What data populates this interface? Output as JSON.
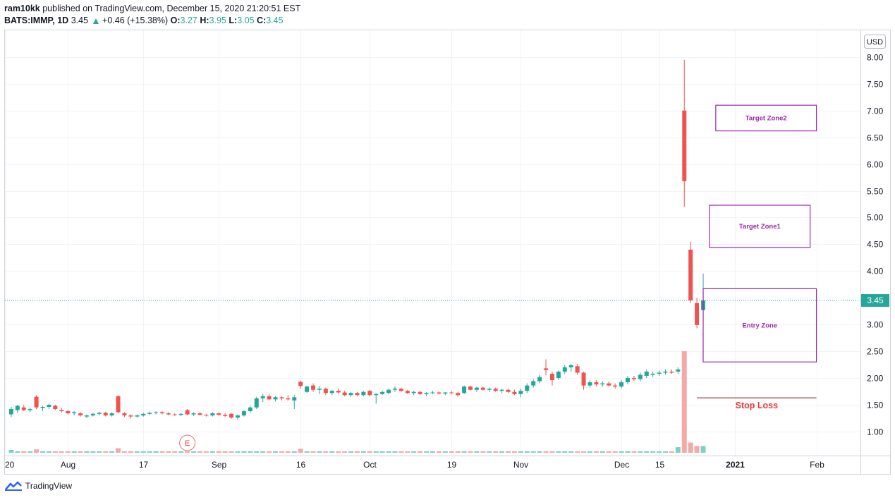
{
  "header": {
    "author": "ram10kk",
    "published_text": "published on TradingView.com, December 15, 2020 21:20:51 EST",
    "symbol": "BATS:IMMP, 1D",
    "price": "3.45",
    "change": "+0.46 (+15.38%)",
    "o_label": "O:",
    "o_value": "3.27",
    "h_label": "H:",
    "h_value": "3.95",
    "l_label": "L:",
    "l_value": "3.05",
    "c_label": "C:",
    "c_value": "3.45"
  },
  "currency_label": "USD",
  "last_price_label": "3.45",
  "brand": "TradingView",
  "colors": {
    "up": "#26a69a",
    "down": "#ef5350",
    "vol_up": "#7fcfc6",
    "vol_down": "#f4a9a8",
    "zone": "#9c27b0",
    "stop": "#e53935"
  },
  "chart_data": {
    "type": "candlestick",
    "y_ticks": [
      "8.00",
      "7.50",
      "7.00",
      "6.50",
      "6.00",
      "5.50",
      "5.00",
      "4.50",
      "4.00",
      "3.50",
      "3.00",
      "2.50",
      "2.00",
      "1.50",
      "1.00"
    ],
    "ylim": [
      0.55,
      8.5
    ],
    "x_ticks": [
      "20",
      "Aug",
      "17",
      "Sep",
      "16",
      "Oct",
      "19",
      "Nov",
      "Dec",
      "15",
      "2021",
      "Feb"
    ],
    "x_tick_days": [
      -1,
      9,
      21,
      33,
      46,
      57,
      70,
      81,
      97,
      103,
      115,
      128
    ],
    "xlim": [
      -1,
      135
    ],
    "grid": true,
    "last_price": 3.45,
    "candles": [
      {
        "d": 0,
        "o": 1.32,
        "h": 1.46,
        "l": 1.27,
        "c": 1.42
      },
      {
        "d": 1,
        "o": 1.4,
        "h": 1.5,
        "l": 1.35,
        "c": 1.48
      },
      {
        "d": 2,
        "o": 1.45,
        "h": 1.5,
        "l": 1.38,
        "c": 1.4
      },
      {
        "d": 3,
        "o": 1.4,
        "h": 1.45,
        "l": 1.36,
        "c": 1.42
      },
      {
        "d": 4,
        "o": 1.65,
        "h": 1.68,
        "l": 1.42,
        "c": 1.45
      },
      {
        "d": 5,
        "o": 1.44,
        "h": 1.48,
        "l": 1.38,
        "c": 1.46
      },
      {
        "d": 6,
        "o": 1.46,
        "h": 1.52,
        "l": 1.42,
        "c": 1.5
      },
      {
        "d": 7,
        "o": 1.48,
        "h": 1.5,
        "l": 1.4,
        "c": 1.42
      },
      {
        "d": 8,
        "o": 1.4,
        "h": 1.44,
        "l": 1.35,
        "c": 1.38
      },
      {
        "d": 9,
        "o": 1.38,
        "h": 1.4,
        "l": 1.32,
        "c": 1.34
      },
      {
        "d": 10,
        "o": 1.34,
        "h": 1.38,
        "l": 1.3,
        "c": 1.36
      },
      {
        "d": 11,
        "o": 1.34,
        "h": 1.36,
        "l": 1.28,
        "c": 1.3
      },
      {
        "d": 12,
        "o": 1.28,
        "h": 1.32,
        "l": 1.25,
        "c": 1.3
      },
      {
        "d": 13,
        "o": 1.3,
        "h": 1.35,
        "l": 1.28,
        "c": 1.33
      },
      {
        "d": 14,
        "o": 1.33,
        "h": 1.37,
        "l": 1.3,
        "c": 1.35
      },
      {
        "d": 15,
        "o": 1.35,
        "h": 1.37,
        "l": 1.28,
        "c": 1.3
      },
      {
        "d": 16,
        "o": 1.3,
        "h": 1.36,
        "l": 1.28,
        "c": 1.34
      },
      {
        "d": 17,
        "o": 1.66,
        "h": 1.68,
        "l": 1.34,
        "c": 1.36
      },
      {
        "d": 18,
        "o": 1.34,
        "h": 1.36,
        "l": 1.27,
        "c": 1.3
      },
      {
        "d": 19,
        "o": 1.3,
        "h": 1.32,
        "l": 1.24,
        "c": 1.28
      },
      {
        "d": 20,
        "o": 1.28,
        "h": 1.32,
        "l": 1.26,
        "c": 1.3
      },
      {
        "d": 21,
        "o": 1.3,
        "h": 1.35,
        "l": 1.28,
        "c": 1.33
      },
      {
        "d": 22,
        "o": 1.33,
        "h": 1.37,
        "l": 1.31,
        "c": 1.35
      },
      {
        "d": 23,
        "o": 1.35,
        "h": 1.38,
        "l": 1.32,
        "c": 1.36
      },
      {
        "d": 24,
        "o": 1.36,
        "h": 1.38,
        "l": 1.32,
        "c": 1.34
      },
      {
        "d": 25,
        "o": 1.34,
        "h": 1.36,
        "l": 1.3,
        "c": 1.32
      },
      {
        "d": 26,
        "o": 1.32,
        "h": 1.34,
        "l": 1.29,
        "c": 1.31
      },
      {
        "d": 27,
        "o": 1.31,
        "h": 1.35,
        "l": 1.29,
        "c": 1.33
      },
      {
        "d": 28,
        "o": 1.4,
        "h": 1.42,
        "l": 1.3,
        "c": 1.32
      },
      {
        "d": 29,
        "o": 1.32,
        "h": 1.36,
        "l": 1.29,
        "c": 1.34
      },
      {
        "d": 30,
        "o": 1.34,
        "h": 1.36,
        "l": 1.3,
        "c": 1.31
      },
      {
        "d": 31,
        "o": 1.31,
        "h": 1.33,
        "l": 1.28,
        "c": 1.3
      },
      {
        "d": 32,
        "o": 1.3,
        "h": 1.36,
        "l": 1.28,
        "c": 1.34
      },
      {
        "d": 33,
        "o": 1.34,
        "h": 1.36,
        "l": 1.3,
        "c": 1.31
      },
      {
        "d": 34,
        "o": 1.31,
        "h": 1.34,
        "l": 1.27,
        "c": 1.29
      },
      {
        "d": 35,
        "o": 1.33,
        "h": 1.35,
        "l": 1.24,
        "c": 1.26
      },
      {
        "d": 36,
        "o": 1.26,
        "h": 1.32,
        "l": 1.22,
        "c": 1.3
      },
      {
        "d": 37,
        "o": 1.3,
        "h": 1.4,
        "l": 1.28,
        "c": 1.38
      },
      {
        "d": 38,
        "o": 1.38,
        "h": 1.48,
        "l": 1.35,
        "c": 1.45
      },
      {
        "d": 39,
        "o": 1.45,
        "h": 1.65,
        "l": 1.42,
        "c": 1.62
      },
      {
        "d": 40,
        "o": 1.62,
        "h": 1.7,
        "l": 1.55,
        "c": 1.66
      },
      {
        "d": 41,
        "o": 1.66,
        "h": 1.7,
        "l": 1.58,
        "c": 1.6
      },
      {
        "d": 42,
        "o": 1.6,
        "h": 1.66,
        "l": 1.56,
        "c": 1.64
      },
      {
        "d": 43,
        "o": 1.64,
        "h": 1.66,
        "l": 1.58,
        "c": 1.62
      },
      {
        "d": 44,
        "o": 1.62,
        "h": 1.68,
        "l": 1.58,
        "c": 1.6
      },
      {
        "d": 45,
        "o": 1.58,
        "h": 1.68,
        "l": 1.42,
        "c": 1.64
      },
      {
        "d": 46,
        "o": 1.93,
        "h": 1.95,
        "l": 1.8,
        "c": 1.85
      },
      {
        "d": 47,
        "o": 1.74,
        "h": 1.86,
        "l": 1.72,
        "c": 1.84
      },
      {
        "d": 48,
        "o": 1.86,
        "h": 1.9,
        "l": 1.74,
        "c": 1.78
      },
      {
        "d": 49,
        "o": 1.78,
        "h": 1.85,
        "l": 1.7,
        "c": 1.8
      },
      {
        "d": 50,
        "o": 1.8,
        "h": 1.82,
        "l": 1.68,
        "c": 1.72
      },
      {
        "d": 51,
        "o": 1.72,
        "h": 1.78,
        "l": 1.68,
        "c": 1.76
      },
      {
        "d": 52,
        "o": 1.76,
        "h": 1.8,
        "l": 1.7,
        "c": 1.73
      },
      {
        "d": 53,
        "o": 1.73,
        "h": 1.76,
        "l": 1.66,
        "c": 1.68
      },
      {
        "d": 54,
        "o": 1.68,
        "h": 1.74,
        "l": 1.65,
        "c": 1.72
      },
      {
        "d": 55,
        "o": 1.72,
        "h": 1.74,
        "l": 1.66,
        "c": 1.68
      },
      {
        "d": 56,
        "o": 1.68,
        "h": 1.76,
        "l": 1.66,
        "c": 1.74
      },
      {
        "d": 57,
        "o": 1.76,
        "h": 1.78,
        "l": 1.66,
        "c": 1.68
      },
      {
        "d": 58,
        "o": 1.68,
        "h": 1.72,
        "l": 1.52,
        "c": 1.7
      },
      {
        "d": 59,
        "o": 1.7,
        "h": 1.76,
        "l": 1.68,
        "c": 1.74
      },
      {
        "d": 60,
        "o": 1.72,
        "h": 1.8,
        "l": 1.7,
        "c": 1.78
      },
      {
        "d": 61,
        "o": 1.78,
        "h": 1.84,
        "l": 1.74,
        "c": 1.8
      },
      {
        "d": 62,
        "o": 1.8,
        "h": 1.82,
        "l": 1.74,
        "c": 1.76
      },
      {
        "d": 63,
        "o": 1.76,
        "h": 1.78,
        "l": 1.7,
        "c": 1.72
      },
      {
        "d": 64,
        "o": 1.72,
        "h": 1.76,
        "l": 1.68,
        "c": 1.74
      },
      {
        "d": 65,
        "o": 1.74,
        "h": 1.76,
        "l": 1.68,
        "c": 1.7
      },
      {
        "d": 66,
        "o": 1.7,
        "h": 1.74,
        "l": 1.66,
        "c": 1.72
      },
      {
        "d": 67,
        "o": 1.72,
        "h": 1.76,
        "l": 1.7,
        "c": 1.73
      },
      {
        "d": 68,
        "o": 1.73,
        "h": 1.75,
        "l": 1.69,
        "c": 1.71
      },
      {
        "d": 69,
        "o": 1.71,
        "h": 1.74,
        "l": 1.68,
        "c": 1.73
      },
      {
        "d": 70,
        "o": 1.73,
        "h": 1.76,
        "l": 1.7,
        "c": 1.72
      },
      {
        "d": 71,
        "o": 1.72,
        "h": 1.74,
        "l": 1.65,
        "c": 1.68
      },
      {
        "d": 72,
        "o": 1.72,
        "h": 1.86,
        "l": 1.7,
        "c": 1.84
      },
      {
        "d": 73,
        "o": 1.84,
        "h": 1.86,
        "l": 1.76,
        "c": 1.78
      },
      {
        "d": 74,
        "o": 1.78,
        "h": 1.84,
        "l": 1.74,
        "c": 1.82
      },
      {
        "d": 75,
        "o": 1.82,
        "h": 1.84,
        "l": 1.76,
        "c": 1.78
      },
      {
        "d": 76,
        "o": 1.78,
        "h": 1.82,
        "l": 1.74,
        "c": 1.8
      },
      {
        "d": 77,
        "o": 1.8,
        "h": 1.82,
        "l": 1.74,
        "c": 1.76
      },
      {
        "d": 78,
        "o": 1.76,
        "h": 1.8,
        "l": 1.72,
        "c": 1.78
      },
      {
        "d": 79,
        "o": 1.78,
        "h": 1.8,
        "l": 1.72,
        "c": 1.74
      },
      {
        "d": 80,
        "o": 1.74,
        "h": 1.78,
        "l": 1.68,
        "c": 1.7
      },
      {
        "d": 81,
        "o": 1.7,
        "h": 1.8,
        "l": 1.64,
        "c": 1.76
      },
      {
        "d": 82,
        "o": 1.76,
        "h": 1.9,
        "l": 1.72,
        "c": 1.86
      },
      {
        "d": 83,
        "o": 1.86,
        "h": 1.98,
        "l": 1.82,
        "c": 1.94
      },
      {
        "d": 84,
        "o": 1.94,
        "h": 2.06,
        "l": 1.9,
        "c": 2.02
      },
      {
        "d": 85,
        "o": 2.18,
        "h": 2.35,
        "l": 2.05,
        "c": 2.15
      },
      {
        "d": 86,
        "o": 2.08,
        "h": 2.12,
        "l": 1.86,
        "c": 1.96
      },
      {
        "d": 87,
        "o": 2.0,
        "h": 2.14,
        "l": 1.96,
        "c": 2.12
      },
      {
        "d": 88,
        "o": 2.12,
        "h": 2.24,
        "l": 2.08,
        "c": 2.2
      },
      {
        "d": 89,
        "o": 2.2,
        "h": 2.26,
        "l": 2.12,
        "c": 2.24
      },
      {
        "d": 90,
        "o": 2.22,
        "h": 2.26,
        "l": 2.06,
        "c": 2.1
      },
      {
        "d": 91,
        "o": 2.1,
        "h": 2.12,
        "l": 1.78,
        "c": 1.86
      },
      {
        "d": 92,
        "o": 1.86,
        "h": 1.96,
        "l": 1.82,
        "c": 1.92
      },
      {
        "d": 93,
        "o": 1.92,
        "h": 1.96,
        "l": 1.84,
        "c": 1.88
      },
      {
        "d": 94,
        "o": 1.88,
        "h": 1.94,
        "l": 1.84,
        "c": 1.9
      },
      {
        "d": 95,
        "o": 1.9,
        "h": 1.94,
        "l": 1.84,
        "c": 1.86
      },
      {
        "d": 96,
        "o": 1.86,
        "h": 1.9,
        "l": 1.8,
        "c": 1.84
      },
      {
        "d": 97,
        "o": 1.84,
        "h": 1.96,
        "l": 1.8,
        "c": 1.92
      },
      {
        "d": 98,
        "o": 1.92,
        "h": 2.04,
        "l": 1.88,
        "c": 2.0
      },
      {
        "d": 99,
        "o": 2.0,
        "h": 2.04,
        "l": 1.94,
        "c": 1.98
      },
      {
        "d": 100,
        "o": 1.98,
        "h": 2.1,
        "l": 1.94,
        "c": 2.06
      },
      {
        "d": 101,
        "o": 2.04,
        "h": 2.16,
        "l": 2.0,
        "c": 2.12
      },
      {
        "d": 102,
        "o": 2.06,
        "h": 2.12,
        "l": 2.02,
        "c": 2.08
      },
      {
        "d": 103,
        "o": 2.08,
        "h": 2.14,
        "l": 2.04,
        "c": 2.1
      },
      {
        "d": 104,
        "o": 2.1,
        "h": 2.16,
        "l": 2.06,
        "c": 2.12
      },
      {
        "d": 105,
        "o": 2.12,
        "h": 2.16,
        "l": 2.08,
        "c": 2.1
      },
      {
        "d": 106,
        "o": 2.12,
        "h": 2.2,
        "l": 2.08,
        "c": 2.16
      },
      {
        "d": 107,
        "o": 7.0,
        "h": 7.95,
        "l": 5.2,
        "c": 5.68
      },
      {
        "d": 108,
        "o": 4.4,
        "h": 4.55,
        "l": 3.4,
        "c": 3.45
      },
      {
        "d": 109,
        "o": 3.4,
        "h": 3.5,
        "l": 2.93,
        "c": 2.99
      },
      {
        "d": 110,
        "o": 3.27,
        "h": 3.95,
        "l": 3.05,
        "c": 3.45
      }
    ],
    "volume": [
      {
        "d": 0,
        "v": 5,
        "up": true
      },
      {
        "d": 4,
        "v": 6,
        "up": false
      },
      {
        "d": 17,
        "v": 8,
        "up": false
      },
      {
        "d": 46,
        "v": 7,
        "up": false
      },
      {
        "d": 106,
        "v": 10,
        "up": true
      },
      {
        "d": 107,
        "v": 180,
        "up": false
      },
      {
        "d": 108,
        "v": 18,
        "up": false
      },
      {
        "d": 109,
        "v": 12,
        "up": false
      },
      {
        "d": 110,
        "v": 12,
        "up": true
      }
    ],
    "vol_max": 200,
    "annotations": {
      "target_zone2": {
        "label": "Target Zone2",
        "d0": 112,
        "d1": 128,
        "y0": 6.62,
        "y1": 7.1
      },
      "target_zone1": {
        "label": "Target Zone1",
        "d0": 111,
        "d1": 127,
        "y0": 4.44,
        "y1": 5.23
      },
      "entry_zone": {
        "label": "Entry Zone",
        "d0": 110,
        "d1": 128,
        "y0": 2.3,
        "y1": 3.67
      },
      "stop_loss": {
        "label": "Stop Loss",
        "d0": 109,
        "d1": 128,
        "y": 1.63
      },
      "earnings": {
        "label": "E",
        "d": 28
      }
    }
  }
}
